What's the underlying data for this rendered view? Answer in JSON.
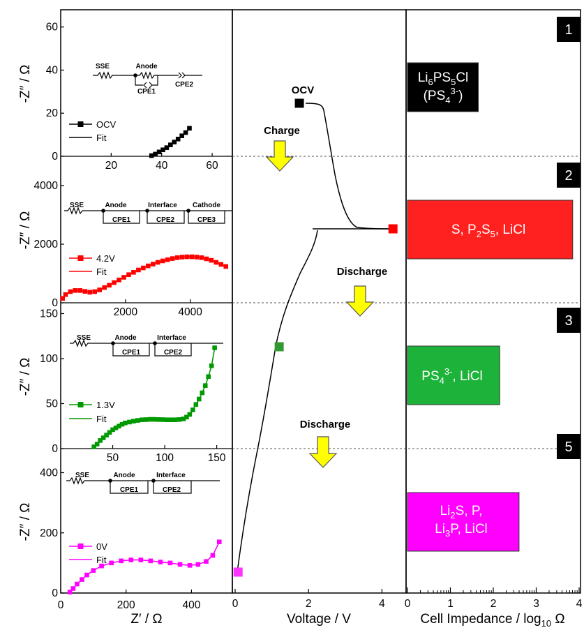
{
  "chart_data": [
    {
      "type": "scatter",
      "panel": "nyquist",
      "xlabel": "Z' / Ω",
      "subplots": [
        {
          "ylabel": "-Z\" / Ω",
          "xlim": [
            0,
            68
          ],
          "ylim": [
            0,
            68
          ],
          "xticks": [
            20,
            40,
            60
          ],
          "yticks": [
            0,
            20,
            40,
            60
          ],
          "legend": [
            "OCV",
            "Fit"
          ],
          "color": "#000000",
          "circuit": [
            "SSE",
            "Anode",
            "CPE1",
            "CPE2"
          ],
          "x": [
            36,
            37.5,
            39,
            40.5,
            42,
            43.5,
            45,
            46.5,
            48,
            49.5,
            51
          ],
          "y": [
            0.3,
            1,
            2,
            3,
            4,
            5.3,
            6.6,
            8,
            9.5,
            11,
            13
          ]
        },
        {
          "ylabel": "-Z\" / Ω",
          "xlim": [
            0,
            5300
          ],
          "ylim": [
            0,
            5000
          ],
          "xticks": [
            2000,
            4000
          ],
          "yticks": [
            0,
            2000,
            4000
          ],
          "legend": [
            "4.2V",
            "Fit"
          ],
          "color": "#ff0000",
          "circuit": [
            "SSE",
            "Anode",
            "CPE1",
            "Interface",
            "CPE2",
            "Cathode",
            "CPE3"
          ],
          "x": [
            60,
            150,
            300,
            450,
            600,
            750,
            900,
            1050,
            1200,
            1350,
            1500,
            1650,
            1800,
            1950,
            2100,
            2250,
            2400,
            2550,
            2700,
            2850,
            3000,
            3150,
            3300,
            3450,
            3600,
            3750,
            3900,
            4050,
            4200,
            4350,
            4500,
            4650,
            4800,
            4950,
            5100
          ],
          "y": [
            150,
            280,
            380,
            420,
            420,
            390,
            360,
            380,
            440,
            520,
            600,
            690,
            780,
            870,
            960,
            1040,
            1120,
            1190,
            1260,
            1320,
            1380,
            1430,
            1470,
            1510,
            1540,
            1560,
            1570,
            1570,
            1560,
            1540,
            1500,
            1450,
            1380,
            1310,
            1240
          ]
        },
        {
          "ylabel": "-Z\" / Ω",
          "xlim": [
            0,
            165
          ],
          "ylim": [
            0,
            162
          ],
          "xticks": [
            50,
            100,
            150
          ],
          "yticks": [
            0,
            50,
            100,
            150
          ],
          "legend": [
            "1.3V",
            "Fit"
          ],
          "color": "#009900",
          "circuit": [
            "SSE",
            "Anode",
            "CPE1",
            "Interface",
            "CPE2"
          ],
          "x": [
            32,
            35,
            38,
            41,
            44,
            47,
            50,
            53,
            56,
            59,
            62,
            66,
            70,
            74,
            78,
            82,
            86,
            90,
            94,
            98,
            102,
            106,
            110,
            114,
            118,
            121,
            124,
            127,
            130,
            133,
            136,
            139,
            142,
            145,
            148
          ],
          "y": [
            2,
            5,
            9,
            12,
            15,
            18,
            21,
            23,
            25,
            27,
            28.5,
            29.5,
            30.5,
            31.3,
            32,
            32.2,
            32.5,
            32.5,
            32.3,
            32.2,
            32,
            32,
            32,
            32.3,
            33,
            35,
            38,
            43,
            49,
            55,
            62,
            70,
            80,
            92,
            112
          ]
        },
        {
          "ylabel": "-Z\" / Ω",
          "xlim": [
            0,
            525
          ],
          "ylim": [
            0,
            480
          ],
          "xticks": [
            0,
            200,
            400
          ],
          "yticks": [
            0,
            200,
            400
          ],
          "legend": [
            "0V",
            "Fit"
          ],
          "color": "#ff00ff",
          "circuit": [
            "SSE",
            "Anode",
            "CPE1",
            "Interface",
            "CPE2"
          ],
          "x": [
            28,
            38,
            50,
            65,
            80,
            100,
            125,
            155,
            185,
            215,
            245,
            275,
            305,
            335,
            365,
            395,
            420,
            445,
            465,
            485
          ],
          "y": [
            3,
            15,
            30,
            45,
            60,
            75,
            90,
            100,
            107,
            110,
            110,
            107,
            103,
            100,
            95,
            92,
            95,
            105,
            125,
            170
          ]
        }
      ]
    },
    {
      "type": "line",
      "panel": "voltage",
      "xlabel": "Voltage / V",
      "xlim": [
        0,
        4.6
      ],
      "xticks": [
        0,
        2,
        4
      ],
      "markers": [
        {
          "label": "OCV",
          "voltage": 1.75,
          "color": "#000000"
        },
        {
          "label": "4.2V",
          "voltage": 4.3,
          "color": "#ff0000"
        },
        {
          "label": "1.3V",
          "voltage": 1.2,
          "color": "#339933"
        },
        {
          "label": "0V",
          "voltage": 0.08,
          "color": "#ff33ff"
        }
      ],
      "annotations": [
        "OCV",
        "Charge",
        "Discharge",
        "Discharge"
      ]
    },
    {
      "type": "bar",
      "panel": "impedance",
      "xlabel": "Cell Impedance / log₁₀ Ω",
      "xlim": [
        0,
        4.0
      ],
      "xticks": [
        0,
        1,
        2,
        3,
        4
      ],
      "categories": [
        "1",
        "2",
        "3",
        "5"
      ],
      "values": [
        1.65,
        3.85,
        2.15,
        2.6
      ],
      "colors": [
        "#000000",
        "#ff2020",
        "#1db33a",
        "#ff00ff"
      ],
      "labels": [
        [
          "Li6PS5Cl",
          "(PS43-)"
        ],
        [
          "S, P2S5, LiCl"
        ],
        [
          "PS43-, LiCl"
        ],
        [
          "Li2S, P,",
          "Li3P, LiCl"
        ]
      ]
    }
  ],
  "text": {
    "nyq_xlabel_main": "Z′ / Ω",
    "ylabel": "-Z″ / Ω",
    "v_xlabel": "Voltage / V",
    "imp_xlabel_main": "Cell Impedance / log",
    "imp_xlabel_sub": "10",
    "imp_xlabel_end": " Ω",
    "ocv": "OCV",
    "charge": "Charge",
    "discharge1": "Discharge",
    "discharge2": "Discharge",
    "badge1": "1",
    "badge2": "2",
    "badge3": "3",
    "badge5": "5",
    "leg_fit": "Fit",
    "leg_ocv": "OCV",
    "leg_42": "4.2V",
    "leg_13": "1.3V",
    "leg_0": "0V",
    "c_sse": "SSE",
    "c_anode": "Anode",
    "c_interface": "Interface",
    "c_cathode": "Cathode",
    "c_cpe1": "CPE1",
    "c_cpe2": "CPE2",
    "c_cpe3": "CPE3",
    "b1_li": "Li",
    "b1_6": "6",
    "b1_ps": "PS",
    "b1_5": "5",
    "b1_cl": "Cl",
    "b1_open": "(PS",
    "b1_4": "4",
    "b1_3m": "3-",
    "b1_close": ")",
    "b2_s": "S, P",
    "b2_2": "2",
    "b2_s2": "S",
    "b2_5": "5",
    "b2_licl": ", LiCl",
    "b3_ps": "PS",
    "b3_4": "4",
    "b3_3m": "3-",
    "b3_licl": ", LiCl",
    "b5_li": "Li",
    "b5_2": "2",
    "b5_sp": "S, P,",
    "b5_li3": "Li",
    "b5_3": "3",
    "b5_plicl": "P, LiCl"
  }
}
